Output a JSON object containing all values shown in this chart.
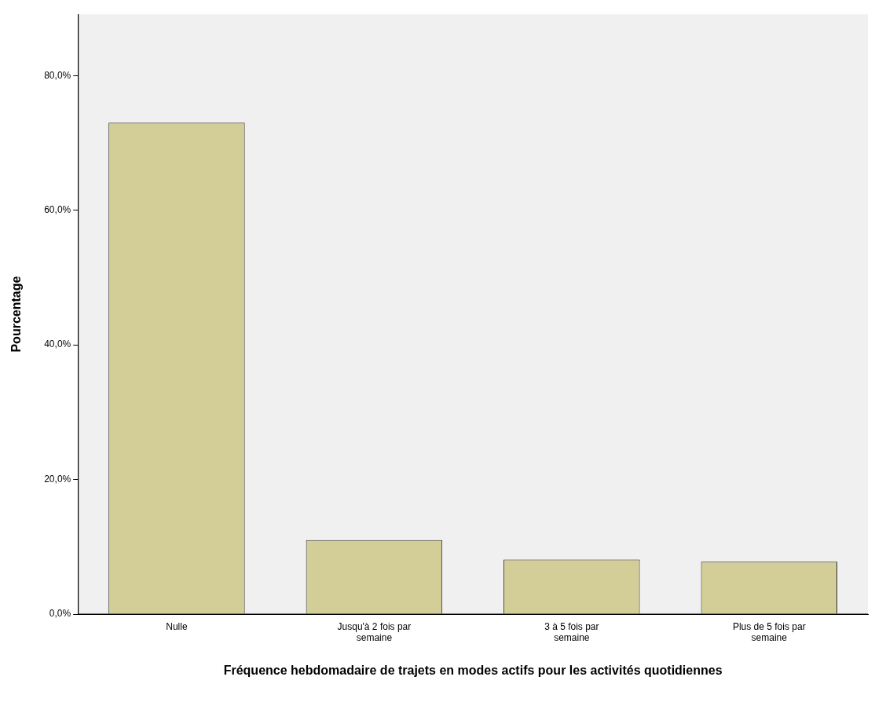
{
  "chart_data": {
    "type": "bar",
    "xlabel": "Fréquence hebdomadaire de trajets en modes actifs pour les activités quotidiennes",
    "ylabel": "Pourcentage",
    "categories": [
      "Nulle",
      "Jusqu'à 2 fois par semaine",
      "3 à 5 fois par semaine",
      "Plus de 5 fois par semaine"
    ],
    "values": [
      73.0,
      11.0,
      8.1,
      7.8
    ],
    "color": "#d3ce97",
    "ylim": [
      0,
      89.1
    ],
    "yticks": [
      {
        "value": 0,
        "label": "0,0%"
      },
      {
        "value": 20,
        "label": "20,0%"
      },
      {
        "value": 40,
        "label": "40,0%"
      },
      {
        "value": 60,
        "label": "60,0%"
      },
      {
        "value": 80,
        "label": "80,0%"
      }
    ],
    "grid": false,
    "legend": false
  }
}
